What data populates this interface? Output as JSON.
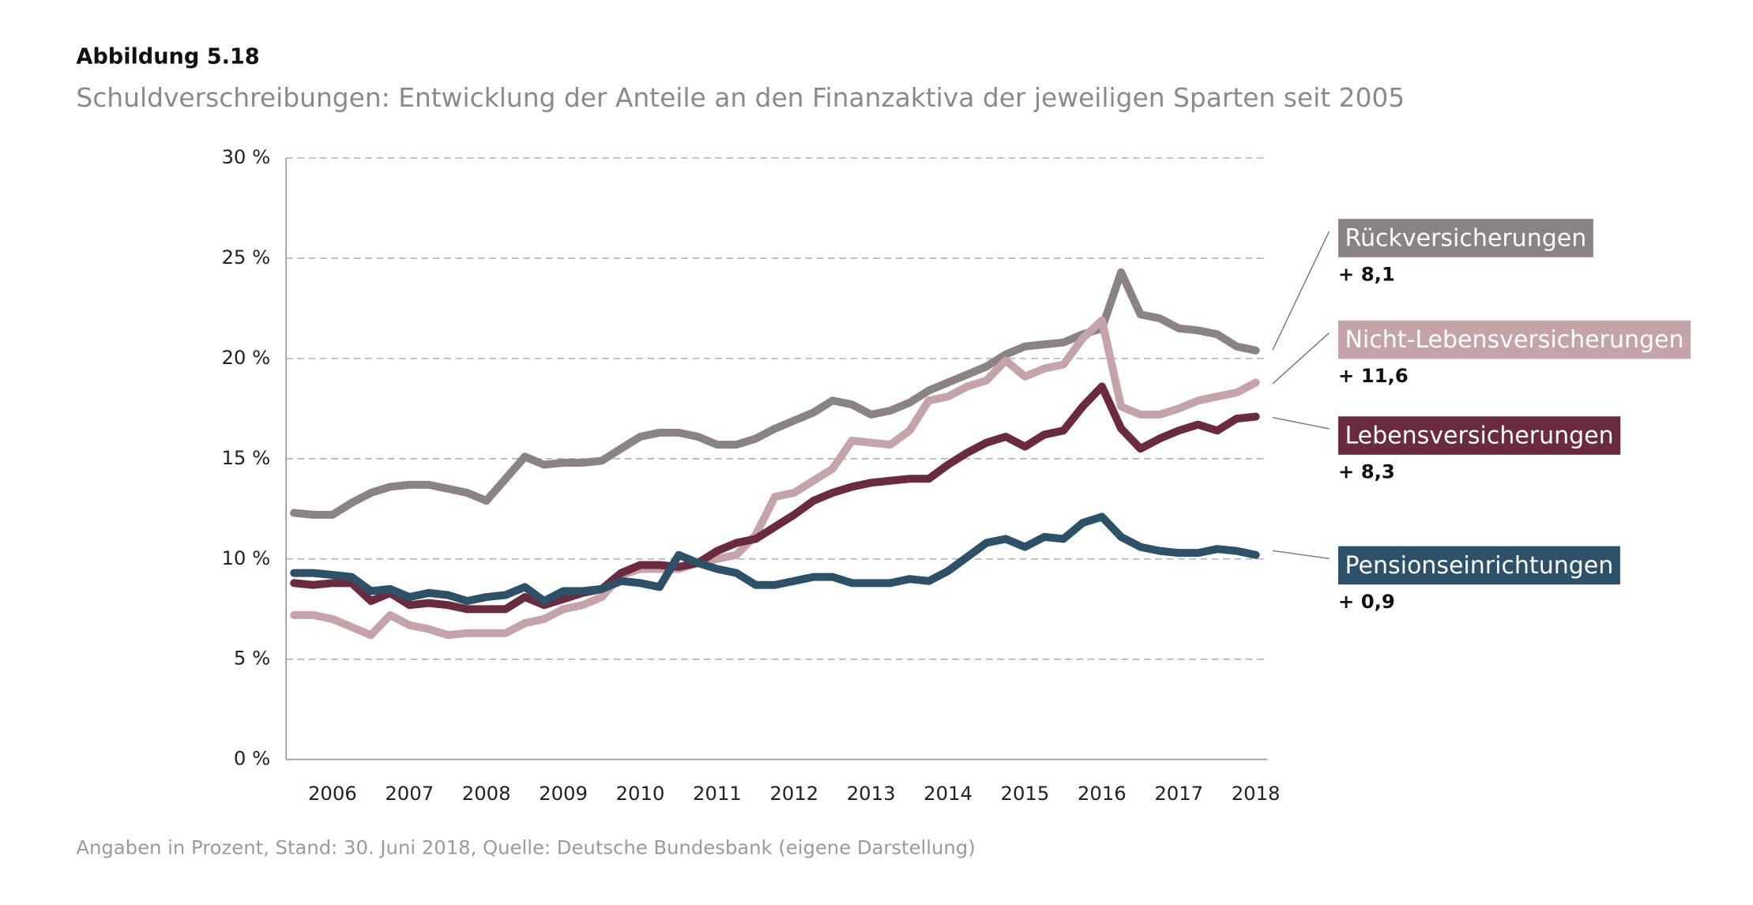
{
  "chart_data": {
    "type": "line",
    "figure_label": "Abbildung 5.18",
    "title": "Schuldverschreibungen: Entwicklung der Anteile an den Finanzaktiva der jeweiligen Sparten seit 2005",
    "note": "Angaben in Prozent, Stand: 30. Juni 2018, Quelle: Deutsche Bundesbank (eigene Darstellung)",
    "categories": [
      null,
      null,
      "2006",
      null,
      null,
      null,
      "2007",
      null,
      null,
      null,
      "2008",
      null,
      null,
      null,
      "2009",
      null,
      null,
      null,
      "2010",
      null,
      null,
      null,
      "2011",
      null,
      null,
      null,
      "2012",
      null,
      null,
      null,
      "2013",
      null,
      null,
      null,
      "2014",
      null,
      null,
      null,
      "2015",
      null,
      null,
      null,
      "2016",
      null,
      null,
      null,
      "2017",
      null,
      null,
      null,
      "2018"
    ],
    "ylim": [
      0,
      30
    ],
    "yticks": [
      {
        "value": 0,
        "label": "0 %"
      },
      {
        "value": 5,
        "label": "5 %"
      },
      {
        "value": 10,
        "label": "10 %"
      },
      {
        "value": 15,
        "label": "15 %"
      },
      {
        "value": 20,
        "label": "20 %"
      },
      {
        "value": 25,
        "label": "25 %"
      },
      {
        "value": 30,
        "label": "30 %"
      }
    ],
    "grid": true,
    "series": [
      {
        "name": "Rückversicherungen",
        "annotation": "+ 8,1",
        "color": "#8a8283",
        "values": [
          12.3,
          12.2,
          12.2,
          12.8,
          13.3,
          13.6,
          13.7,
          13.7,
          13.5,
          13.3,
          12.9,
          14.0,
          15.1,
          14.7,
          14.8,
          14.8,
          14.9,
          15.5,
          16.1,
          16.3,
          16.3,
          16.1,
          15.7,
          15.7,
          16.0,
          16.5,
          16.9,
          17.3,
          17.9,
          17.7,
          17.2,
          17.4,
          17.8,
          18.4,
          18.8,
          19.2,
          19.6,
          20.2,
          20.6,
          20.7,
          20.8,
          21.2,
          21.5,
          24.3,
          22.2,
          22.0,
          21.5,
          21.4,
          21.2,
          20.6,
          20.4
        ]
      },
      {
        "name": "Nicht-Lebensversicherungen",
        "annotation": "+ 11,6",
        "color": "#c4a4a9",
        "values": [
          7.2,
          7.2,
          7.0,
          6.6,
          6.2,
          7.2,
          6.7,
          6.5,
          6.2,
          6.3,
          6.3,
          6.3,
          6.8,
          7.0,
          7.5,
          7.7,
          8.1,
          9.2,
          9.5,
          9.5,
          9.5,
          9.8,
          10.0,
          10.2,
          11.2,
          13.1,
          13.3,
          13.9,
          14.5,
          15.9,
          15.8,
          15.7,
          16.4,
          17.9,
          18.1,
          18.6,
          18.9,
          19.9,
          19.1,
          19.5,
          19.7,
          21.0,
          21.9,
          17.6,
          17.2,
          17.2,
          17.5,
          17.9,
          18.1,
          18.3,
          18.8
        ]
      },
      {
        "name": "Lebensversicherungen",
        "annotation": "+ 8,3",
        "color": "#6b2b3f",
        "values": [
          8.8,
          8.7,
          8.8,
          8.8,
          7.9,
          8.3,
          7.7,
          7.8,
          7.7,
          7.5,
          7.5,
          7.5,
          8.1,
          7.7,
          8.0,
          8.3,
          8.5,
          9.3,
          9.7,
          9.7,
          9.6,
          9.8,
          10.4,
          10.8,
          11.0,
          11.6,
          12.2,
          12.9,
          13.3,
          13.6,
          13.8,
          13.9,
          14.0,
          14.0,
          14.7,
          15.3,
          15.8,
          16.1,
          15.6,
          16.2,
          16.4,
          17.6,
          18.6,
          16.5,
          15.5,
          16.0,
          16.4,
          16.7,
          16.4,
          17.0,
          17.1
        ]
      },
      {
        "name": "Pensionseinrichtungen",
        "annotation": "+ 0,9",
        "color": "#2d5169",
        "values": [
          9.3,
          9.3,
          9.2,
          9.1,
          8.4,
          8.5,
          8.1,
          8.3,
          8.2,
          7.9,
          8.1,
          8.2,
          8.6,
          7.9,
          8.4,
          8.4,
          8.5,
          8.9,
          8.8,
          8.6,
          10.2,
          9.8,
          9.5,
          9.3,
          8.7,
          8.7,
          8.9,
          9.1,
          9.1,
          8.8,
          8.8,
          8.8,
          9.0,
          8.9,
          9.4,
          10.1,
          10.8,
          11.0,
          10.6,
          11.1,
          11.0,
          11.8,
          12.1,
          11.1,
          10.6,
          10.4,
          10.3,
          10.3,
          10.5,
          10.4,
          10.2
        ]
      }
    ]
  }
}
